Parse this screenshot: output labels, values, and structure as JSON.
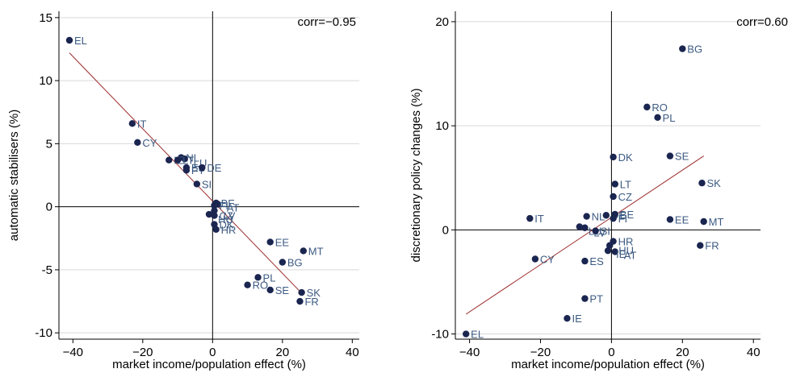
{
  "colors": {
    "points": "#1a2550",
    "point_labels": "#3c5a82",
    "fit_line": "#9b2a2a",
    "grid": "#d9d9d9"
  },
  "chart_data": [
    {
      "type": "scatter",
      "xlabel": "market income/population effect (%)",
      "ylabel": "automatic stabilisers (%)",
      "annotation": "corr=−0.95",
      "xlim": [
        -44,
        42
      ],
      "ylim": [
        -10.5,
        15.5
      ],
      "xticks": [
        -40,
        -20,
        0,
        20,
        40
      ],
      "yticks": [
        -10,
        -5,
        0,
        5,
        10,
        15
      ],
      "grid": "horizontal",
      "fit_line": {
        "x": [
          -41,
          26
        ],
        "y": [
          12.2,
          -7.0
        ]
      },
      "points": [
        {
          "label": "EL",
          "x": -41,
          "y": 13.2
        },
        {
          "label": "IT",
          "x": -23,
          "y": 6.6
        },
        {
          "label": "CY",
          "x": -21.5,
          "y": 5.1
        },
        {
          "label": "NL",
          "x": -9,
          "y": 3.9
        },
        {
          "label": "LU",
          "x": -8,
          "y": 3.8
        },
        {
          "label": "IE",
          "x": -12.5,
          "y": 3.7
        },
        {
          "label": "LT",
          "x": -10,
          "y": 3.7
        },
        {
          "label": "ES",
          "x": -7.5,
          "y": 3.1
        },
        {
          "label": "PT",
          "x": -7.5,
          "y": 2.9
        },
        {
          "label": "DE",
          "x": -3,
          "y": 3.1
        },
        {
          "label": "SI",
          "x": -4.5,
          "y": 1.8
        },
        {
          "label": "BE",
          "x": 1,
          "y": 0.3
        },
        {
          "label": "AT",
          "x": 1.5,
          "y": 0.2
        },
        {
          "label": "FI",
          "x": 0.5,
          "y": 0.1
        },
        {
          "label": "LV",
          "x": 0.5,
          "y": -0.3
        },
        {
          "label": "CZ",
          "x": 0.5,
          "y": -0.7
        },
        {
          "label": "HU",
          "x": -1,
          "y": -0.6
        },
        {
          "label": "DK",
          "x": 0.5,
          "y": -1.4
        },
        {
          "label": "HR",
          "x": 1,
          "y": -1.8
        },
        {
          "label": "EE",
          "x": 16.5,
          "y": -2.8
        },
        {
          "label": "MT",
          "x": 26,
          "y": -3.5
        },
        {
          "label": "BG",
          "x": 20,
          "y": -4.4
        },
        {
          "label": "PL",
          "x": 13,
          "y": -5.6
        },
        {
          "label": "RO",
          "x": 10,
          "y": -6.2
        },
        {
          "label": "SE",
          "x": 16.5,
          "y": -6.6
        },
        {
          "label": "SK",
          "x": 25.5,
          "y": -6.8
        },
        {
          "label": "FR",
          "x": 25,
          "y": -7.5
        }
      ]
    },
    {
      "type": "scatter",
      "xlabel": "market income/population effect (%)",
      "ylabel": "discretionary policy changes (%)",
      "annotation": "corr=0.60",
      "xlim": [
        -44,
        42
      ],
      "ylim": [
        -10.5,
        21
      ],
      "xticks": [
        -40,
        -20,
        0,
        20,
        40
      ],
      "yticks": [
        -10,
        0,
        10,
        20
      ],
      "grid": "horizontal",
      "fit_line": {
        "x": [
          -41,
          26
        ],
        "y": [
          -8.1,
          7.1
        ]
      },
      "points": [
        {
          "label": "BG",
          "x": 20,
          "y": 17.4
        },
        {
          "label": "RO",
          "x": 10,
          "y": 11.8
        },
        {
          "label": "PL",
          "x": 13,
          "y": 10.8
        },
        {
          "label": "DK",
          "x": 0.5,
          "y": 7.0
        },
        {
          "label": "SE",
          "x": 16.5,
          "y": 7.1
        },
        {
          "label": "SK",
          "x": 25.5,
          "y": 4.5
        },
        {
          "label": "LT",
          "x": 1,
          "y": 4.4
        },
        {
          "label": "CZ",
          "x": 0.5,
          "y": 3.2
        },
        {
          "label": "IT",
          "x": -23,
          "y": 1.1
        },
        {
          "label": "NL",
          "x": -7,
          "y": 1.3
        },
        {
          "label": "DE",
          "x": -1.5,
          "y": 1.4
        },
        {
          "label": "BE",
          "x": 1,
          "y": 1.5
        },
        {
          "label": "FI",
          "x": 0.5,
          "y": 1.1
        },
        {
          "label": "EE",
          "x": 16.5,
          "y": 1.0
        },
        {
          "label": "MT",
          "x": 26,
          "y": 0.8
        },
        {
          "label": "LU",
          "x": -9,
          "y": 0.3
        },
        {
          "label": "LV",
          "x": -7.5,
          "y": 0.2
        },
        {
          "label": "SI",
          "x": -4.5,
          "y": -0.1
        },
        {
          "label": "HR",
          "x": 0.5,
          "y": -1.1
        },
        {
          "label": "HU",
          "x": -0.5,
          "y": -1.5
        },
        {
          "label": "FR",
          "x": 25,
          "y": -1.5
        },
        {
          "label": "AT",
          "x": 1,
          "y": -2.1
        },
        {
          "label": "IE2",
          "x": -1,
          "y": -2.0
        },
        {
          "label": "CY",
          "x": -21.5,
          "y": -2.8
        },
        {
          "label": "ES",
          "x": -7.5,
          "y": -3.0
        },
        {
          "label": "PT",
          "x": -7.5,
          "y": -6.6
        },
        {
          "label": "IE",
          "x": -12.5,
          "y": -8.5
        },
        {
          "label": "EL",
          "x": -41,
          "y": -10.0
        }
      ]
    }
  ]
}
